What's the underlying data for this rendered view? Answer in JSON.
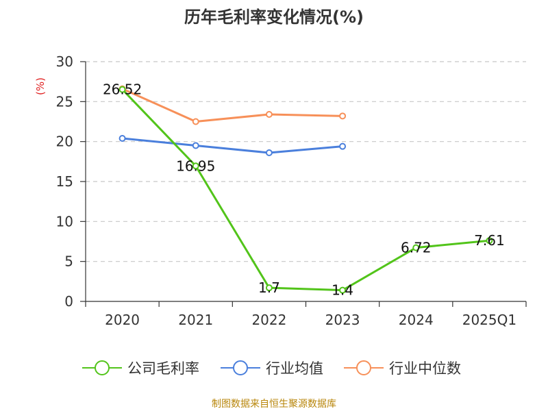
{
  "chart_data": {
    "type": "line",
    "title": "历年毛利率变化情况(%)",
    "ylabel": "(%)",
    "xlabel": "",
    "categories": [
      "2020",
      "2021",
      "2022",
      "2023",
      "2024",
      "2025Q1"
    ],
    "ylim": [
      0,
      30
    ],
    "yticks": [
      0,
      5,
      10,
      15,
      20,
      25,
      30
    ],
    "grid": true,
    "legend_position": "bottom",
    "series": [
      {
        "name": "公司毛利率",
        "color": "#52c41a",
        "values": [
          26.52,
          16.95,
          1.7,
          1.4,
          6.72,
          7.61
        ],
        "labels": [
          "26.52",
          "16.95",
          "1.7",
          "1.4",
          "6.72",
          "7.61"
        ]
      },
      {
        "name": "行业均值",
        "color": "#4a7fdc",
        "values": [
          20.4,
          19.5,
          18.6,
          19.4,
          null,
          null
        ]
      },
      {
        "name": "行业中位数",
        "color": "#f79059",
        "values": [
          26.6,
          22.5,
          23.4,
          23.2,
          null,
          null
        ]
      }
    ]
  },
  "footer": {
    "source": "制图数据来自恒生聚源数据库"
  }
}
